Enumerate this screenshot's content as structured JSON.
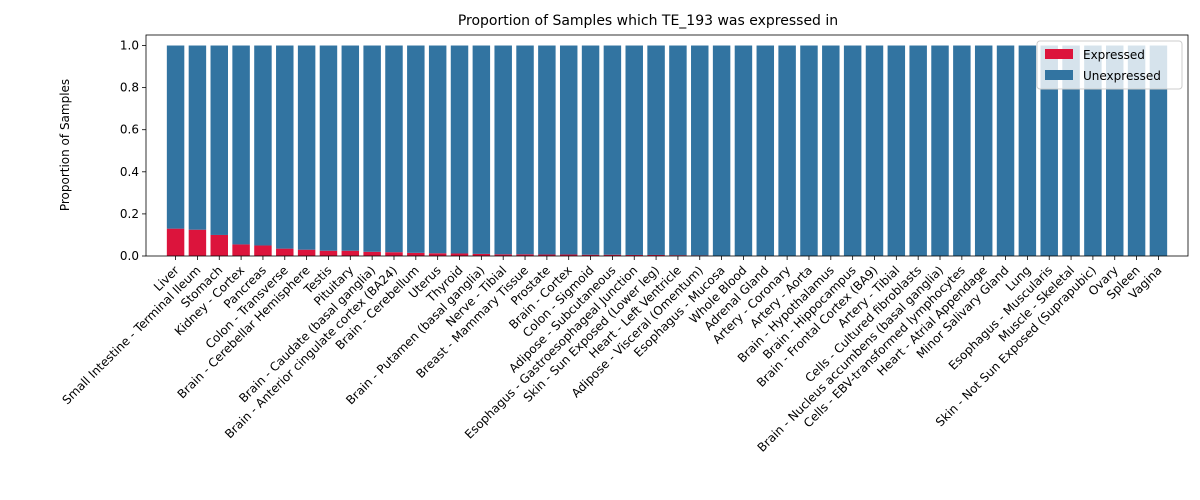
{
  "chart_data": {
    "type": "bar",
    "stacked": true,
    "title": "Proportion of Samples which TE_193 was expressed in",
    "xlabel": "",
    "ylabel": "Proportion of Samples",
    "ylim": [
      0,
      1.05
    ],
    "yticks": [
      "0.0",
      "0.2",
      "0.4",
      "0.6",
      "0.8",
      "1.0"
    ],
    "legend_position": "top-right",
    "grid": false,
    "categories": [
      "Liver",
      "Small Intestine - Terminal Ileum",
      "Stomach",
      "Kidney - Cortex",
      "Pancreas",
      "Colon - Transverse",
      "Brain - Cerebellar Hemisphere",
      "Testis",
      "Pituitary",
      "Brain - Caudate (basal ganglia)",
      "Brain - Anterior cingulate cortex (BA24)",
      "Brain - Cerebellum",
      "Uterus",
      "Thyroid",
      "Brain - Putamen (basal ganglia)",
      "Nerve - Tibial",
      "Breast - Mammary Tissue",
      "Prostate",
      "Brain - Cortex",
      "Colon - Sigmoid",
      "Adipose - Subcutaneous",
      "Esophagus - Gastroesophageal Junction",
      "Skin - Sun Exposed (Lower leg)",
      "Heart - Left Ventricle",
      "Adipose - Visceral (Omentum)",
      "Esophagus - Mucosa",
      "Whole Blood",
      "Adrenal Gland",
      "Artery - Coronary",
      "Artery - Aorta",
      "Brain - Hypothalamus",
      "Brain - Hippocampus",
      "Brain - Frontal Cortex (BA9)",
      "Artery - Tibial",
      "Cells - Cultured fibroblasts",
      "Brain - Nucleus accumbens (basal ganglia)",
      "Cells - EBV-transformed lymphocytes",
      "Heart - Atrial Appendage",
      "Minor Salivary Gland",
      "Lung",
      "Esophagus - Muscularis",
      "Muscle - Skeletal",
      "Skin - Not Sun Exposed (Suprapubic)",
      "Ovary",
      "Spleen",
      "Vagina"
    ],
    "series": [
      {
        "name": "Expressed",
        "color": "#dc143c",
        "values": [
          0.13,
          0.125,
          0.1,
          0.055,
          0.05,
          0.035,
          0.03,
          0.025,
          0.025,
          0.02,
          0.018,
          0.015,
          0.013,
          0.012,
          0.01,
          0.008,
          0.008,
          0.007,
          0.007,
          0.006,
          0.006,
          0.005,
          0.005,
          0.004,
          0.003,
          0,
          0,
          0,
          0,
          0,
          0,
          0,
          0,
          0,
          0,
          0,
          0,
          0,
          0,
          0,
          0,
          0,
          0,
          0,
          0,
          0
        ]
      },
      {
        "name": "Unexpressed",
        "color": "#3274a1",
        "values": [
          0.87,
          0.875,
          0.9,
          0.945,
          0.95,
          0.965,
          0.97,
          0.975,
          0.975,
          0.98,
          0.982,
          0.985,
          0.987,
          0.988,
          0.99,
          0.992,
          0.992,
          0.993,
          0.993,
          0.994,
          0.994,
          0.995,
          0.995,
          0.996,
          0.997,
          1,
          1,
          1,
          1,
          1,
          1,
          1,
          1,
          1,
          1,
          1,
          1,
          1,
          1,
          1,
          1,
          1,
          1,
          1,
          1,
          1
        ]
      }
    ]
  }
}
